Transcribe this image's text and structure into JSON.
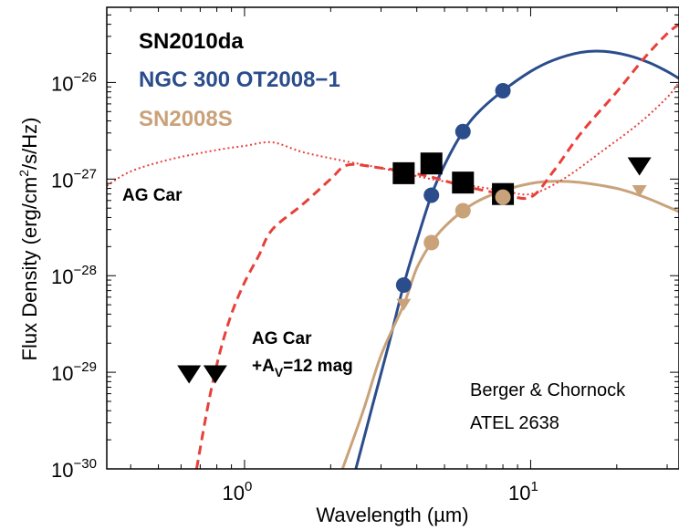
{
  "chart_data": {
    "type": "scatter",
    "xlabel": "Wavelength  (µm)",
    "ylabel_main": "Flux Density  (erg/cm",
    "ylabel_sup": "2",
    "ylabel_tail": "/s/Hz)",
    "xscale": "log",
    "yscale": "log",
    "xlim": [
      0.33,
      33
    ],
    "ylim": [
      1e-30,
      6e-26
    ],
    "x_ticks": [
      {
        "value": 1,
        "base": "10",
        "exp": "0"
      },
      {
        "value": 10,
        "base": "10",
        "exp": "1"
      }
    ],
    "y_ticks": [
      {
        "value": 1e-30,
        "base": "10",
        "exp": "−30"
      },
      {
        "value": 1e-29,
        "base": "10",
        "exp": "−29"
      },
      {
        "value": 1e-28,
        "base": "10",
        "exp": "−28"
      },
      {
        "value": 1e-27,
        "base": "10",
        "exp": "−27"
      },
      {
        "value": 1e-26,
        "base": "10",
        "exp": "−26"
      }
    ],
    "legend": [
      {
        "label": "SN2010da",
        "color": "#000000"
      },
      {
        "label": "NGC 300 OT2008−1",
        "color": "#2b4d8c"
      },
      {
        "label": "SN2008S",
        "color": "#c9a27a"
      }
    ],
    "annotations": {
      "ag_car": "AG Car",
      "ag_car_av_line1": "AG Car",
      "ag_car_av_line2_pre": "+A",
      "ag_car_av_line2_sub": "V",
      "ag_car_av_line2_post": "=12 mag",
      "credit_line1": "Berger & Chornock",
      "credit_line2": "ATEL 2638"
    },
    "series": [
      {
        "name": "SN2010da",
        "kind": "squares",
        "color": "#000000",
        "x": [
          3.6,
          4.5,
          5.8,
          8.0
        ],
        "y": [
          1.15e-27,
          1.45e-27,
          9.2e-28,
          7e-28
        ]
      },
      {
        "name": "SN2010da",
        "kind": "upper-limits",
        "color": "#000000",
        "x": [
          0.64,
          0.79,
          24
        ],
        "y": [
          9.5e-30,
          9.5e-30,
          1.35e-27
        ]
      },
      {
        "name": "NGC 300 OT2008−1",
        "kind": "circles",
        "color": "#2b4d8c",
        "x": [
          3.6,
          4.5,
          5.8,
          8.0
        ],
        "y": [
          8e-29,
          6.8e-28,
          3.1e-27,
          8.2e-27
        ]
      },
      {
        "name": "SN2008S",
        "kind": "circles",
        "color": "#c9a27a",
        "x": [
          4.5,
          5.8,
          8.0
        ],
        "y": [
          2.2e-28,
          4.7e-28,
          6.5e-28
        ]
      },
      {
        "name": "SN2008S",
        "kind": "upper-limits",
        "color": "#c9a27a",
        "x": [
          3.6,
          24
        ],
        "y": [
          5e-29,
          7.5e-28
        ]
      },
      {
        "name": "NGC 300 OT2008−1",
        "kind": "curve",
        "style": "solid",
        "color": "#2b4d8c",
        "x": [
          2.45,
          2.8,
          3.2,
          3.6,
          4.0,
          4.5,
          5.0,
          5.8,
          6.6,
          8.0,
          10,
          12,
          15,
          18,
          22,
          26,
          30,
          33
        ],
        "y": [
          1e-30,
          4.5e-30,
          2e-29,
          8e-29,
          2.3e-28,
          6.8e-28,
          1.4e-27,
          3.1e-27,
          5e-27,
          8.2e-27,
          1.3e-26,
          1.7e-26,
          2.05e-26,
          2.1e-26,
          1.9e-26,
          1.6e-26,
          1.3e-26,
          1.1e-26
        ]
      },
      {
        "name": "SN2008S",
        "kind": "curve",
        "style": "solid",
        "color": "#c9a27a",
        "x": [
          2.2,
          2.6,
          3.0,
          3.6,
          4.0,
          4.5,
          5.0,
          5.8,
          6.6,
          8.0,
          10,
          12,
          15,
          20,
          25,
          30,
          33
        ],
        "y": [
          1e-30,
          4e-30,
          1.5e-29,
          5e-29,
          1.2e-28,
          2.2e-28,
          3.2e-28,
          4.7e-28,
          6e-28,
          7.6e-28,
          9e-28,
          9.5e-28,
          9.2e-28,
          8e-28,
          6.5e-28,
          5.2e-28,
          4.6e-28
        ]
      },
      {
        "name": "AG Car",
        "kind": "curve",
        "style": "dotted",
        "color": "#e8403a",
        "x": [
          0.33,
          0.4,
          0.55,
          0.8,
          1.0,
          1.25,
          1.6,
          2.2,
          3.0,
          3.6,
          4.5,
          5.8,
          8.0,
          10,
          13,
          18,
          24,
          30,
          33
        ],
        "y": [
          8.5e-28,
          1.2e-27,
          1.6e-27,
          2e-27,
          2.2e-27,
          2.4e-27,
          1.9e-27,
          1.55e-27,
          1.3e-27,
          1.15e-27,
          1e-27,
          8.8e-28,
          7.6e-28,
          7e-28,
          1e-27,
          2e-27,
          3.8e-27,
          7e-27,
          1e-26
        ]
      },
      {
        "name": "AG Car +AV=12 mag",
        "kind": "curve",
        "style": "dashed",
        "color": "#e8403a",
        "x": [
          0.68,
          0.75,
          0.82,
          0.9,
          1.0,
          1.12,
          1.25,
          1.6,
          2.0,
          2.3,
          3.0,
          3.6,
          4.5,
          5.8,
          8.0,
          10,
          12,
          15,
          20,
          25,
          30,
          33
        ],
        "y": [
          1e-30,
          5e-30,
          1.6e-29,
          4e-29,
          8.5e-29,
          1.6e-28,
          3e-28,
          5.5e-28,
          1e-27,
          1.4e-27,
          1.3e-27,
          1.2e-27,
          1.05e-27,
          8.5e-28,
          7e-28,
          6.5e-28,
          1.2e-27,
          3e-27,
          8e-27,
          1.8e-26,
          3.2e-26,
          4e-26
        ]
      }
    ]
  }
}
